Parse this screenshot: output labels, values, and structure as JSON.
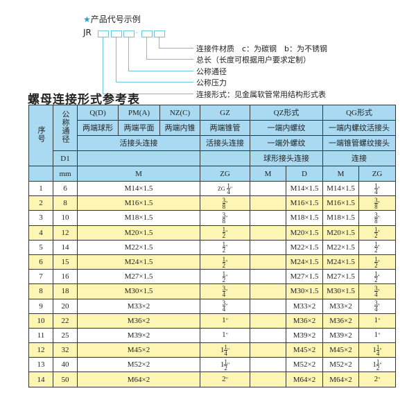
{
  "example": {
    "star": "★",
    "title": "产品代号示例",
    "code": "JR",
    "dash": "-",
    "labels": [
      "连接件材质　c：为碳钢　b：为不锈钢",
      "总长（长度可根据用户要求定制）",
      "公称通径",
      "公称压力",
      "连接形式：见金属软管常用结构形式表"
    ]
  },
  "table_title": "螺母连接形式参考表",
  "header": {
    "seq": "序号",
    "dn": "公称通径",
    "d1": "D1",
    "mm": "mm",
    "types": [
      "Q(D)",
      "PM(A)",
      "NZ(C)",
      "GZ",
      "QZ形式",
      "QG形式"
    ],
    "shapes": [
      "两端球形",
      "两端平面",
      "两端内锥",
      "两端锥管",
      "一端内螺纹",
      "一端内螺纹活接头"
    ],
    "conn": [
      "活接头连接",
      "活接头连接",
      "一端外螺纹",
      "一端锥管螺纹接头"
    ],
    "conn2": [
      "球形接头连接",
      "连接"
    ],
    "units": [
      "M",
      "ZG",
      "M",
      "D",
      "M",
      "ZG"
    ]
  },
  "rows": [
    {
      "no": "1",
      "dn": "6",
      "m": "M14×1.5",
      "zg": {
        "pre": "ZG",
        "w": "",
        "n": "1",
        "d": "4"
      },
      "qzd": "M14×1.5",
      "qgm": "M14×1.5"
    },
    {
      "no": "2",
      "dn": "8",
      "m": "M16×1.5",
      "zg": {
        "pre": "",
        "w": "",
        "n": "3",
        "d": "8"
      },
      "qzd": "M16×1.5",
      "qgm": "M16×1.5"
    },
    {
      "no": "3",
      "dn": "10",
      "m": "M18×1.5",
      "zg": {
        "pre": "",
        "w": "",
        "n": "3",
        "d": "8"
      },
      "qzd": "M18×1.5",
      "qgm": "M18×1.5"
    },
    {
      "no": "4",
      "dn": "12",
      "m": "M20×1.5",
      "zg": {
        "pre": "",
        "w": "",
        "n": "1",
        "d": "2"
      },
      "qzd": "M20×1.5",
      "qgm": "M20×1.5"
    },
    {
      "no": "5",
      "dn": "14",
      "m": "M22×1.5",
      "zg": {
        "pre": "",
        "w": "",
        "n": "1",
        "d": "2"
      },
      "qzd": "M22×1.5",
      "qgm": "M22×1.5"
    },
    {
      "no": "6",
      "dn": "15",
      "m": "M24×1.5",
      "zg": {
        "pre": "",
        "w": "",
        "n": "1",
        "d": "2"
      },
      "qzd": "M24×1.5",
      "qgm": "M24×1.5"
    },
    {
      "no": "7",
      "dn": "16",
      "m": "M27×1.5",
      "zg": {
        "pre": "",
        "w": "",
        "n": "1",
        "d": "2"
      },
      "qzd": "M27×1.5",
      "qgm": "M27×1.5"
    },
    {
      "no": "8",
      "dn": "18",
      "m": "M30×1.5",
      "zg": {
        "pre": "",
        "w": "",
        "n": "3",
        "d": "4"
      },
      "qzd": "M30×1.5",
      "qgm": "M30×1.5"
    },
    {
      "no": "9",
      "dn": "20",
      "m": "M33×2",
      "zg": {
        "pre": "",
        "w": "",
        "n": "3",
        "d": "4"
      },
      "qzd": "M33×2",
      "qgm": "M33×2"
    },
    {
      "no": "10",
      "dn": "22",
      "m": "M36×2",
      "zg": {
        "pre": "",
        "w": "1",
        "n": "",
        "d": ""
      },
      "qzd": "M36×2",
      "qgm": "M36×2"
    },
    {
      "no": "11",
      "dn": "25",
      "m": "M39×2",
      "zg": {
        "pre": "",
        "w": "1",
        "n": "",
        "d": ""
      },
      "qzd": "M39×2",
      "qgm": "M39×2"
    },
    {
      "no": "12",
      "dn": "32",
      "m": "M45×2",
      "zg": {
        "pre": "",
        "w": "1",
        "n": "1",
        "d": "4"
      },
      "qzd": "M45×2",
      "qgm": "M45×2"
    },
    {
      "no": "13",
      "dn": "40",
      "m": "M52×2",
      "zg": {
        "pre": "",
        "w": "1",
        "n": "1",
        "d": "2"
      },
      "qzd": "M52×2",
      "qgm": "M52×2"
    },
    {
      "no": "14",
      "dn": "50",
      "m": "M64×2",
      "zg": {
        "pre": "",
        "w": "2",
        "n": "",
        "d": ""
      },
      "qzd": "M64×2",
      "qgm": "M64×2"
    }
  ],
  "inch": "\""
}
